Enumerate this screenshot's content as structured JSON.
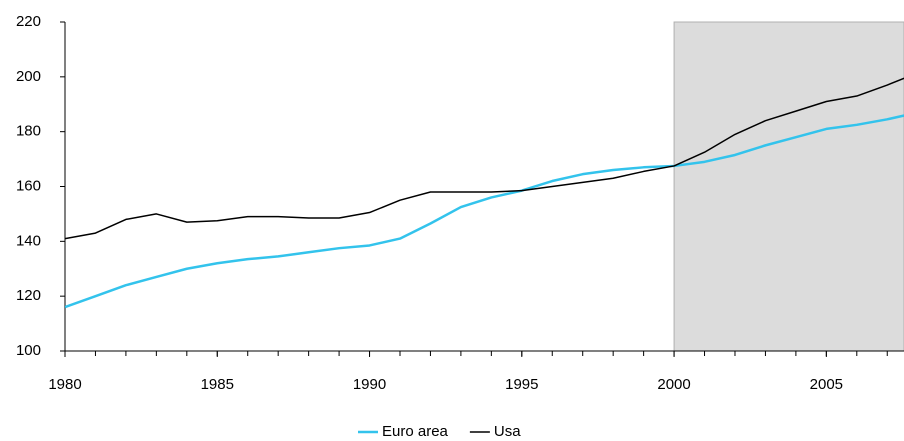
{
  "chart_data": {
    "type": "line",
    "x": [
      1980,
      1981,
      1982,
      1983,
      1984,
      1985,
      1986,
      1987,
      1988,
      1989,
      1990,
      1991,
      1992,
      1993,
      1994,
      1995,
      1996,
      1997,
      1998,
      1999,
      2000,
      2001,
      2002,
      2003,
      2004,
      2005,
      2006,
      2007,
      2008
    ],
    "series": [
      {
        "name": "Euro area",
        "color": "#33c3ec",
        "values": [
          116,
          120,
          124,
          127,
          130,
          132,
          133.5,
          134.5,
          136,
          137.5,
          138.5,
          141,
          146.5,
          152.5,
          156,
          158.5,
          162,
          164.5,
          166,
          167,
          167.5,
          169,
          171.5,
          175,
          178,
          181,
          182.5,
          184.5,
          187
        ]
      },
      {
        "name": "Usa",
        "color": "#000000",
        "values": [
          141,
          143,
          148,
          150,
          147,
          147.5,
          149,
          149,
          148.5,
          148.5,
          150.5,
          155,
          158,
          158,
          158,
          158.5,
          160,
          161.5,
          163,
          165.5,
          167.5,
          172.5,
          179,
          184,
          187.5,
          191,
          193,
          197,
          201.5
        ]
      }
    ],
    "xlim": [
      1980,
      2007.55
    ],
    "xticks": [
      1980,
      1985,
      1990,
      1995,
      2000,
      2005
    ],
    "ylim": [
      100,
      220
    ],
    "yticks": [
      100,
      120,
      140,
      160,
      180,
      200,
      220
    ],
    "shaded_from": 2000,
    "legend": "bottom"
  }
}
